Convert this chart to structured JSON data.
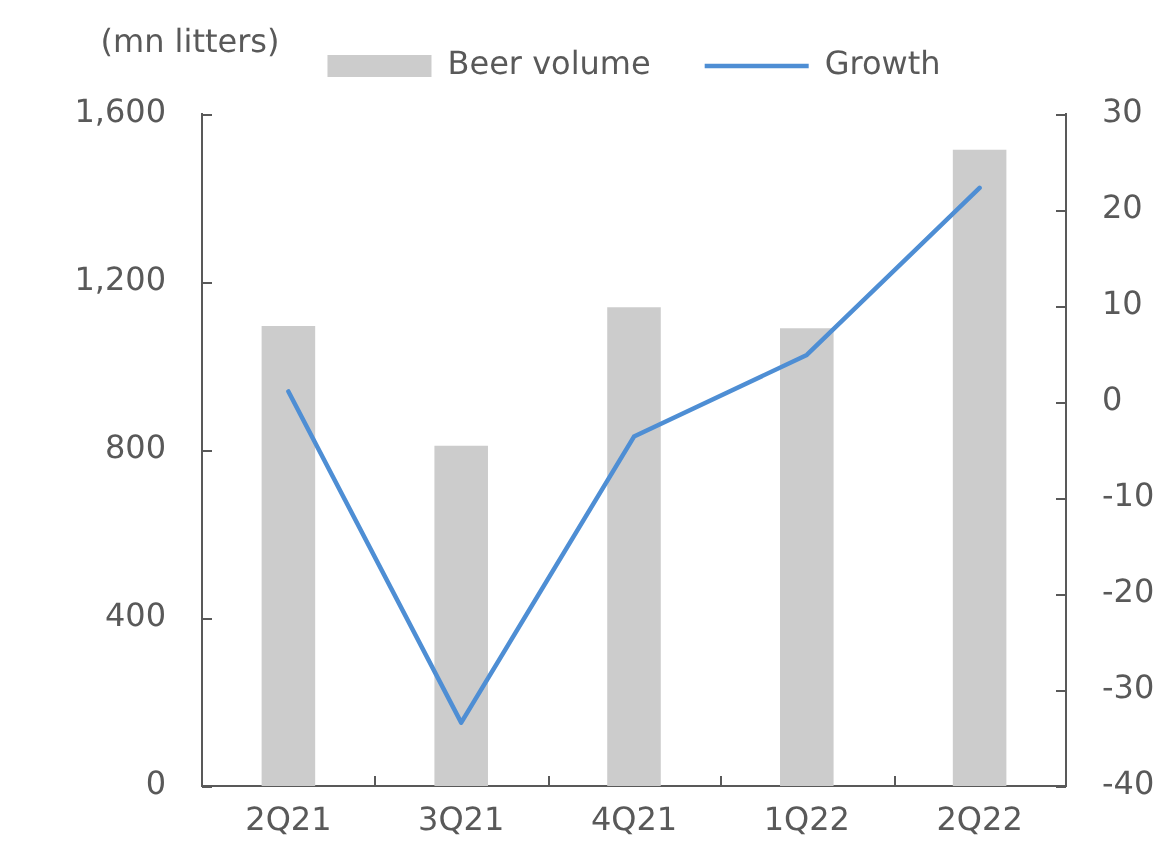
{
  "chart_data": {
    "type": "bar",
    "ylabel": "(mn litters)",
    "categories": [
      "2Q21",
      "3Q21",
      "4Q21",
      "1Q22",
      "2Q22"
    ],
    "series": [
      {
        "name": "Beer volume",
        "color": "#cccccc",
        "values": [
          1095,
          810,
          1140,
          1090,
          1515
        ]
      },
      {
        "name": "Growth",
        "type": "line",
        "axis": "y2",
        "color": "#4e8ed4",
        "values": [
          1.1,
          -33.4,
          -3.6,
          4.9,
          22.3
        ]
      }
    ],
    "ylim": [
      0,
      1600
    ],
    "yticks": [
      0,
      400,
      800,
      {
        "value": 1200,
        "label": "1,200"
      },
      {
        "value": 1600,
        "label": "1,600"
      }
    ],
    "y2lim": [
      -40,
      30
    ],
    "y2ticks": [
      -40,
      -30,
      -20,
      -10,
      0,
      10,
      20,
      30
    ],
    "legend": "top",
    "grid": false,
    "marker": "none"
  }
}
